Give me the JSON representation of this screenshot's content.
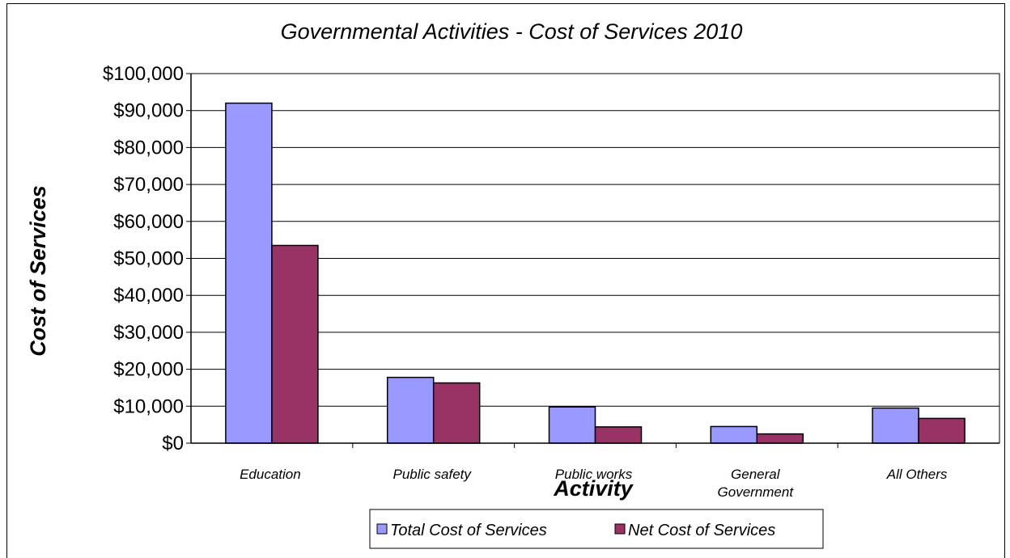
{
  "chart_data": {
    "type": "bar",
    "title": "Governmental Activities - Cost of Services 2010",
    "xlabel": "Activity",
    "ylabel": "Cost of Services",
    "categories": [
      [
        "Education"
      ],
      [
        "Public safety"
      ],
      [
        "Public works"
      ],
      [
        "General",
        "Government"
      ],
      [
        "All Others"
      ]
    ],
    "series": [
      {
        "name": "Total Cost of Services",
        "values": [
          92000,
          17800,
          9800,
          4500,
          9500
        ],
        "color": "#9999ff"
      },
      {
        "name": "Net Cost of Services",
        "values": [
          53500,
          16300,
          4400,
          2500,
          6700
        ],
        "color": "#993366"
      }
    ],
    "ylim": [
      0,
      100000
    ],
    "yticks": [
      "$0",
      "$10,000",
      "$20,000",
      "$30,000",
      "$40,000",
      "$50,000",
      "$60,000",
      "$70,000",
      "$80,000",
      "$90,000",
      "$100,000"
    ],
    "grid": true,
    "legend_position": "bottom"
  }
}
